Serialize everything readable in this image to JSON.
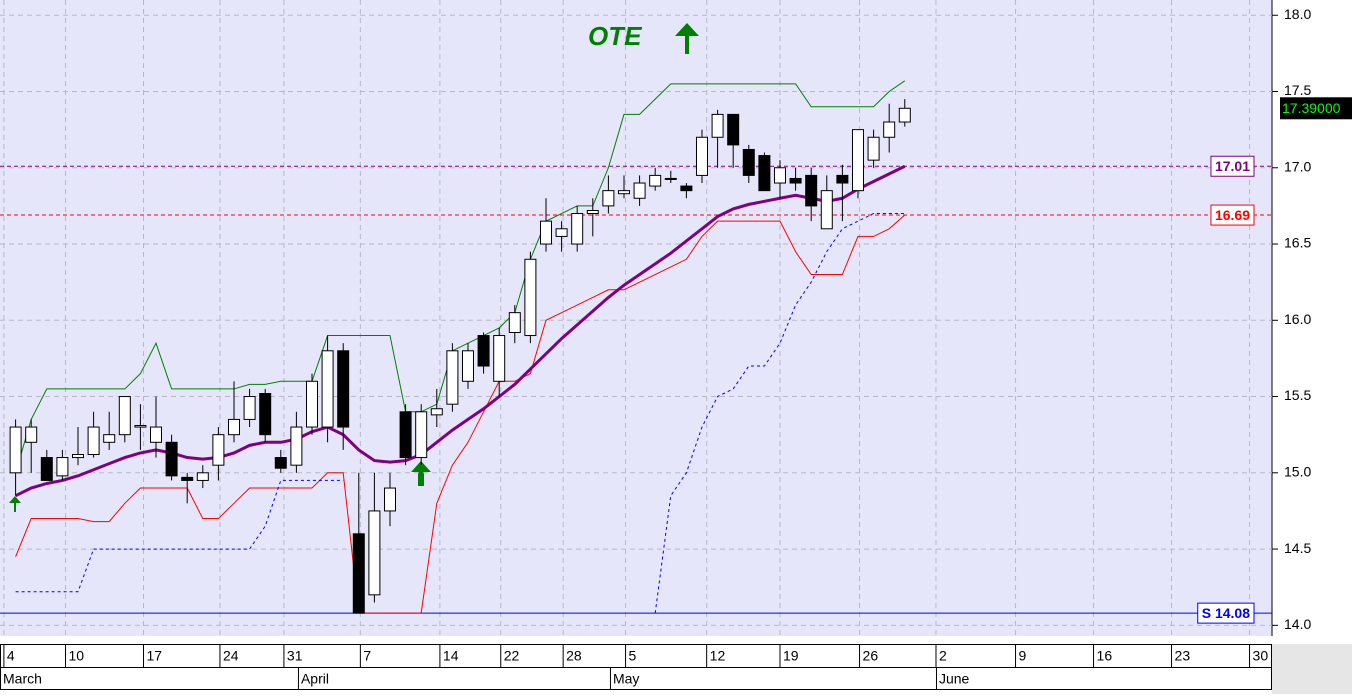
{
  "chart_data": {
    "type": "candlestick",
    "annotation": "OTE",
    "x": [
      1,
      2,
      3,
      4,
      5,
      6,
      7,
      8,
      9,
      10,
      11,
      12,
      13,
      14,
      15,
      16,
      17,
      18,
      19,
      20,
      21,
      22,
      23,
      24,
      25,
      26,
      27,
      28,
      29,
      30,
      31,
      32,
      33,
      34,
      35,
      36,
      37,
      38,
      39,
      40,
      41,
      42,
      43,
      44,
      45,
      46,
      47,
      48,
      49,
      50,
      51,
      52,
      53,
      54,
      55,
      56,
      57,
      58
    ],
    "open": [
      15.0,
      15.2,
      15.1,
      14.98,
      15.1,
      15.12,
      15.2,
      15.25,
      15.3,
      15.2,
      15.2,
      14.97,
      14.95,
      15.05,
      15.25,
      15.35,
      15.52,
      15.1,
      15.05,
      15.3,
      15.3,
      15.8,
      14.6,
      14.2,
      14.75,
      15.4,
      15.1,
      15.38,
      15.45,
      15.6,
      15.9,
      15.6,
      15.92,
      15.9,
      16.5,
      16.55,
      16.5,
      16.7,
      16.75,
      16.83,
      16.8,
      16.88,
      16.93,
      16.88,
      16.95,
      17.2,
      17.35,
      17.12,
      17.08,
      16.9,
      16.93,
      16.95,
      16.6,
      16.95,
      16.85,
      17.05,
      17.2,
      17.3
    ],
    "high": [
      15.35,
      15.35,
      15.15,
      15.15,
      15.3,
      15.4,
      15.4,
      15.5,
      15.45,
      15.5,
      15.25,
      15.0,
      15.05,
      15.3,
      15.6,
      15.55,
      15.55,
      15.15,
      15.4,
      15.65,
      15.9,
      15.85,
      15.0,
      15.0,
      15.0,
      15.45,
      15.45,
      15.55,
      15.85,
      15.85,
      15.92,
      15.95,
      16.1,
      16.45,
      16.8,
      16.65,
      16.75,
      16.8,
      16.95,
      16.95,
      16.95,
      17.0,
      16.98,
      16.9,
      17.25,
      17.38,
      17.35,
      17.15,
      17.1,
      17.05,
      17.0,
      17.0,
      16.95,
      17.02,
      17.25,
      17.25,
      17.42,
      17.45
    ],
    "low": [
      14.85,
      15.0,
      14.95,
      14.95,
      15.05,
      15.1,
      15.15,
      15.2,
      15.15,
      15.1,
      14.95,
      14.8,
      14.9,
      14.95,
      15.2,
      15.3,
      15.2,
      15.0,
      15.0,
      15.25,
      15.2,
      15.15,
      14.08,
      14.15,
      14.65,
      15.05,
      15.05,
      15.3,
      15.4,
      15.55,
      15.65,
      15.5,
      15.85,
      15.85,
      16.45,
      16.45,
      16.45,
      16.55,
      16.7,
      16.8,
      16.75,
      16.85,
      16.9,
      16.8,
      16.9,
      17.0,
      17.0,
      16.9,
      16.85,
      16.8,
      16.85,
      16.65,
      16.6,
      16.65,
      16.8,
      17.0,
      17.1,
      17.27
    ],
    "close": [
      15.3,
      15.3,
      14.95,
      15.1,
      15.12,
      15.3,
      15.25,
      15.5,
      15.31,
      15.3,
      14.98,
      14.95,
      15.0,
      15.25,
      15.35,
      15.5,
      15.25,
      15.03,
      15.3,
      15.6,
      15.8,
      15.3,
      14.08,
      14.75,
      14.9,
      15.1,
      15.4,
      15.42,
      15.8,
      15.8,
      15.7,
      15.9,
      16.05,
      16.4,
      16.65,
      16.6,
      16.7,
      16.72,
      16.85,
      16.85,
      16.9,
      16.95,
      16.93,
      16.85,
      17.2,
      17.35,
      17.15,
      16.95,
      16.85,
      17.0,
      16.9,
      16.75,
      16.85,
      16.9,
      17.25,
      17.2,
      17.3,
      17.39
    ],
    "lines": [
      {
        "color": "#008000",
        "width": 1,
        "dash": false,
        "values": [
          15.0,
          15.35,
          15.55,
          15.55,
          15.55,
          15.55,
          15.55,
          15.55,
          15.65,
          15.85,
          15.55,
          15.55,
          15.55,
          15.55,
          15.55,
          15.58,
          15.58,
          15.6,
          15.6,
          15.6,
          15.9,
          15.9,
          15.9,
          15.9,
          15.9,
          15.4,
          15.4,
          15.45,
          15.8,
          15.85,
          15.9,
          15.95,
          16.05,
          16.4,
          16.65,
          16.7,
          16.75,
          16.75,
          17.0,
          17.35,
          17.35,
          17.45,
          17.55,
          17.55,
          17.55,
          17.55,
          17.55,
          17.55,
          17.55,
          17.55,
          17.55,
          17.4,
          17.4,
          17.4,
          17.4,
          17.4,
          17.5,
          17.57
        ]
      },
      {
        "color": "#ff0000",
        "width": 1,
        "dash": false,
        "values": [
          14.45,
          14.7,
          14.7,
          14.7,
          14.7,
          14.68,
          14.68,
          14.8,
          14.9,
          14.9,
          14.9,
          14.9,
          14.7,
          14.7,
          14.8,
          14.9,
          14.9,
          14.9,
          14.9,
          14.9,
          15.0,
          15.0,
          14.08,
          14.08,
          14.08,
          14.08,
          14.08,
          14.8,
          15.05,
          15.2,
          15.4,
          15.6,
          15.6,
          15.65,
          16.0,
          16.05,
          16.1,
          16.15,
          16.2,
          16.2,
          16.25,
          16.3,
          16.35,
          16.4,
          16.55,
          16.65,
          16.65,
          16.65,
          16.65,
          16.65,
          16.45,
          16.3,
          16.3,
          16.3,
          16.55,
          16.55,
          16.6,
          16.69
        ]
      },
      {
        "color": "#0000ff",
        "width": 1,
        "dash": true,
        "values": [
          14.22,
          14.22,
          14.22,
          14.22,
          14.22,
          14.5,
          14.5,
          14.5,
          14.5,
          14.5,
          14.5,
          14.5,
          14.5,
          14.5,
          14.5,
          14.5,
          14.65,
          14.95,
          14.95,
          14.95,
          14.95,
          14.95,
          null,
          null,
          null,
          null,
          null,
          null,
          null,
          null,
          null,
          null,
          null,
          null,
          null,
          null,
          null,
          null,
          null,
          null,
          null,
          14.08,
          14.85,
          15.0,
          15.3,
          15.5,
          15.55,
          15.7,
          15.7,
          15.85,
          16.1,
          16.25,
          16.45,
          16.6,
          16.65,
          16.7,
          16.7,
          16.7
        ]
      },
      {
        "color": "#800080",
        "width": 3,
        "dash": false,
        "values": [
          14.85,
          14.9,
          14.93,
          14.95,
          14.98,
          15.02,
          15.06,
          15.1,
          15.13,
          15.15,
          15.13,
          15.1,
          15.09,
          15.1,
          15.13,
          15.18,
          15.2,
          15.2,
          15.22,
          15.27,
          15.3,
          15.25,
          15.15,
          15.08,
          15.07,
          15.08,
          15.12,
          15.2,
          15.28,
          15.35,
          15.42,
          15.5,
          15.58,
          15.68,
          15.78,
          15.88,
          15.97,
          16.06,
          16.15,
          16.23,
          16.3,
          16.37,
          16.44,
          16.52,
          16.6,
          16.68,
          16.73,
          16.76,
          16.78,
          16.8,
          16.82,
          16.8,
          16.78,
          16.8,
          16.86,
          16.91,
          16.96,
          17.01
        ]
      }
    ],
    "levels": [
      {
        "value": 17.01,
        "color": "#800080",
        "dash": true
      },
      {
        "value": 16.69,
        "color": "#ff0000",
        "dash": true
      },
      {
        "value": 14.08,
        "label": "S 14.08",
        "color": "#0000ff",
        "dash": false
      }
    ],
    "last_price": {
      "value": 17.39,
      "label": "17.39000"
    },
    "xlim": [
      0,
      81.54
    ],
    "xticks": [
      {
        "value": 0.25,
        "label": "4"
      },
      {
        "value": 4.2,
        "label": "10"
      },
      {
        "value": 9.2,
        "label": "17"
      },
      {
        "value": 14.1,
        "label": "24"
      },
      {
        "value": 18.2,
        "label": "31"
      },
      {
        "value": 23.1,
        "label": "7"
      },
      {
        "value": 28.2,
        "label": "14"
      },
      {
        "value": 32.1,
        "label": "22"
      },
      {
        "value": 36.1,
        "label": "28"
      },
      {
        "value": 40.1,
        "label": "5"
      },
      {
        "value": 45.3,
        "label": "12"
      },
      {
        "value": 50.0,
        "label": "19"
      },
      {
        "value": 55.1,
        "label": "26"
      },
      {
        "value": 60.0,
        "label": "2"
      },
      {
        "value": 65.1,
        "label": "9"
      },
      {
        "value": 70.1,
        "label": "16"
      },
      {
        "value": 75.1,
        "label": "23"
      },
      {
        "value": 80.1,
        "label": "30"
      }
    ],
    "months": [
      {
        "value": 0,
        "label": "March"
      },
      {
        "value": 19.1,
        "label": "April"
      },
      {
        "value": 39.1,
        "label": "May"
      },
      {
        "value": 60.0,
        "label": "June"
      }
    ],
    "ylim": [
      13.93,
      18.1
    ],
    "yticks": [
      {
        "value": 14,
        "label": "14.0"
      },
      14.5,
      {
        "value": 15,
        "label": "15.0"
      },
      15.5,
      {
        "value": 16,
        "label": "16.0"
      },
      16.5,
      {
        "value": 17,
        "label": "17.0"
      },
      17.5,
      {
        "value": 18,
        "label": "18.0"
      }
    ],
    "grid": true
  }
}
